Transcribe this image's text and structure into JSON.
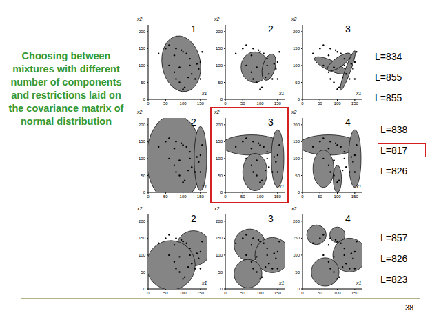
{
  "title": "Choosing between mixtures with different number of components and restrictions laid on the covariance matrix of normal distribution",
  "page": 38,
  "chart_data": [
    {
      "type": "scatter",
      "subtitle": "1",
      "x_label": "x1",
      "y_label": "x2",
      "x": [
        30,
        50,
        60,
        75,
        80,
        95,
        100,
        110,
        120,
        140,
        150,
        145,
        60,
        75,
        80,
        90,
        100,
        105,
        115,
        125,
        135,
        155,
        150,
        120,
        90
      ],
      "values": [
        135,
        150,
        160,
        130,
        150,
        145,
        140,
        135,
        120,
        105,
        110,
        90,
        100,
        80,
        60,
        50,
        30,
        35,
        65,
        75,
        60,
        140,
        60,
        100,
        95
      ],
      "xlim": [
        0,
        170
      ],
      "ylim": [
        0,
        220
      ],
      "xticks": [
        0,
        50,
        100,
        150
      ],
      "yticks": [
        0,
        50,
        100,
        150,
        200
      ],
      "components": [
        {
          "cx": 95,
          "cy": 105,
          "rx": 55,
          "ry": 83,
          "angle": 10
        }
      ],
      "annotation": {
        "value": 834,
        "label": "L=834"
      }
    },
    {
      "type": "scatter",
      "subtitle": "2",
      "x_label": "x1",
      "y_label": "x2",
      "x": [
        30,
        50,
        60,
        75,
        80,
        95,
        100,
        110,
        120,
        140,
        150,
        145,
        60,
        75,
        80,
        90,
        100,
        105,
        115,
        125,
        135,
        155,
        150,
        120,
        90
      ],
      "values": [
        135,
        150,
        160,
        130,
        150,
        145,
        140,
        135,
        120,
        105,
        110,
        90,
        100,
        80,
        60,
        50,
        30,
        35,
        65,
        75,
        60,
        140,
        60,
        100,
        95
      ],
      "xlim": [
        0,
        170
      ],
      "ylim": [
        0,
        220
      ],
      "xticks": [
        0,
        50,
        100,
        150
      ],
      "yticks": [
        0,
        50,
        100,
        150,
        200
      ],
      "components": [
        {
          "cx": 85,
          "cy": 95,
          "rx": 40,
          "ry": 45,
          "angle": 0
        },
        {
          "cx": 125,
          "cy": 95,
          "rx": 18,
          "ry": 40,
          "angle": -15
        }
      ],
      "annotation": {
        "value": 855,
        "label": "L=855"
      }
    },
    {
      "type": "scatter",
      "subtitle": "3",
      "x_label": "x1",
      "y_label": "x2",
      "x": [
        30,
        50,
        60,
        75,
        80,
        95,
        100,
        110,
        120,
        140,
        150,
        145,
        60,
        75,
        80,
        90,
        100,
        105,
        115,
        125,
        135,
        155,
        150,
        120,
        90
      ],
      "values": [
        135,
        150,
        160,
        130,
        150,
        145,
        140,
        135,
        120,
        105,
        110,
        90,
        100,
        80,
        60,
        50,
        30,
        35,
        65,
        75,
        60,
        140,
        60,
        100,
        95
      ],
      "xlim": [
        0,
        170
      ],
      "ylim": [
        0,
        220
      ],
      "xticks": [
        0,
        50,
        100,
        150
      ],
      "yticks": [
        0,
        50,
        100,
        150,
        200
      ],
      "components": [
        {
          "cx": 80,
          "cy": 100,
          "rx": 50,
          "ry": 15,
          "angle": -25
        },
        {
          "cx": 105,
          "cy": 110,
          "rx": 40,
          "ry": 14,
          "angle": 35
        },
        {
          "cx": 130,
          "cy": 85,
          "rx": 60,
          "ry": 8,
          "angle": 70
        }
      ],
      "annotation": {
        "value": 855,
        "label": "L=855"
      }
    },
    {
      "type": "scatter",
      "subtitle": "2",
      "x_label": "x1",
      "y_label": "x2",
      "x": [
        30,
        50,
        60,
        75,
        80,
        95,
        100,
        110,
        120,
        140,
        150,
        145,
        60,
        75,
        80,
        90,
        100,
        105,
        115,
        125,
        135,
        155,
        150,
        120,
        90
      ],
      "values": [
        135,
        150,
        160,
        130,
        150,
        145,
        140,
        135,
        120,
        105,
        110,
        90,
        100,
        80,
        60,
        50,
        30,
        35,
        65,
        75,
        60,
        140,
        60,
        100,
        95
      ],
      "xlim": [
        0,
        170
      ],
      "ylim": [
        0,
        220
      ],
      "xticks": [
        0,
        50,
        100,
        150
      ],
      "yticks": [
        0,
        50,
        100,
        150,
        200
      ],
      "components": [
        {
          "cx": 75,
          "cy": 100,
          "rx": 80,
          "ry": 130,
          "angle": 0
        },
        {
          "cx": 150,
          "cy": 100,
          "rx": 18,
          "ry": 95,
          "angle": 0
        }
      ],
      "annotation": {
        "value": 838,
        "label": "L=838"
      }
    },
    {
      "type": "scatter",
      "subtitle": "3",
      "x_label": "x1",
      "y_label": "x2",
      "x": [
        30,
        50,
        60,
        75,
        80,
        95,
        100,
        110,
        120,
        140,
        150,
        145,
        60,
        75,
        80,
        90,
        100,
        105,
        115,
        125,
        135,
        155,
        150,
        120,
        90
      ],
      "values": [
        135,
        150,
        160,
        130,
        150,
        145,
        140,
        135,
        120,
        105,
        110,
        90,
        100,
        80,
        60,
        50,
        30,
        35,
        65,
        75,
        60,
        140,
        60,
        100,
        95
      ],
      "xlim": [
        0,
        170
      ],
      "ylim": [
        0,
        220
      ],
      "xticks": [
        0,
        50,
        100,
        150
      ],
      "yticks": [
        0,
        50,
        100,
        150,
        200
      ],
      "components": [
        {
          "cx": 75,
          "cy": 140,
          "rx": 85,
          "ry": 30,
          "angle": 0
        },
        {
          "cx": 85,
          "cy": 60,
          "rx": 35,
          "ry": 55,
          "angle": 0
        },
        {
          "cx": 150,
          "cy": 100,
          "rx": 18,
          "ry": 85,
          "angle": 0
        }
      ],
      "annotation": {
        "value": 817,
        "label": "L=817"
      }
    },
    {
      "type": "scatter",
      "subtitle": "4",
      "x_label": "x1",
      "y_label": "x2",
      "x": [
        30,
        50,
        60,
        75,
        80,
        95,
        100,
        110,
        120,
        140,
        150,
        145,
        60,
        75,
        80,
        90,
        100,
        105,
        115,
        125,
        135,
        155,
        150,
        120,
        90
      ],
      "values": [
        135,
        150,
        160,
        130,
        150,
        145,
        140,
        135,
        120,
        105,
        110,
        90,
        100,
        80,
        60,
        50,
        30,
        35,
        65,
        75,
        60,
        140,
        60,
        100,
        95
      ],
      "xlim": [
        0,
        170
      ],
      "ylim": [
        0,
        220
      ],
      "xticks": [
        0,
        50,
        100,
        150
      ],
      "yticks": [
        0,
        50,
        100,
        150,
        200
      ],
      "components": [
        {
          "cx": 75,
          "cy": 140,
          "rx": 85,
          "ry": 30,
          "angle": 0
        },
        {
          "cx": 60,
          "cy": 70,
          "rx": 30,
          "ry": 55,
          "angle": 0
        },
        {
          "cx": 100,
          "cy": 40,
          "rx": 12,
          "ry": 40,
          "angle": 0
        },
        {
          "cx": 150,
          "cy": 100,
          "rx": 18,
          "ry": 85,
          "angle": 0
        }
      ],
      "annotation": {
        "value": 826,
        "label": "L=826"
      }
    },
    {
      "type": "scatter",
      "subtitle": "2",
      "x_label": "x1",
      "y_label": "x2",
      "x": [
        30,
        50,
        60,
        75,
        80,
        95,
        100,
        110,
        120,
        140,
        150,
        145,
        60,
        75,
        80,
        90,
        100,
        105,
        115,
        125,
        135,
        155,
        150,
        120,
        90
      ],
      "values": [
        135,
        150,
        160,
        130,
        150,
        145,
        140,
        135,
        120,
        105,
        110,
        90,
        100,
        80,
        60,
        50,
        30,
        35,
        65,
        75,
        60,
        140,
        60,
        100,
        95
      ],
      "xlim": [
        0,
        170
      ],
      "ylim": [
        0,
        220
      ],
      "xticks": [
        0,
        50,
        100,
        150
      ],
      "yticks": [
        0,
        50,
        100,
        150,
        200
      ],
      "components": [
        {
          "cx": 130,
          "cy": 120,
          "rx": 50,
          "ry": 52,
          "angle": 0
        },
        {
          "cx": 65,
          "cy": 70,
          "rx": 70,
          "ry": 73,
          "angle": 0
        }
      ],
      "annotation": {
        "value": 857,
        "label": "L=857"
      }
    },
    {
      "type": "scatter",
      "subtitle": "3",
      "x_label": "x1",
      "y_label": "x2",
      "x": [
        30,
        50,
        60,
        75,
        80,
        95,
        100,
        110,
        120,
        140,
        150,
        145,
        60,
        75,
        80,
        90,
        100,
        105,
        115,
        125,
        135,
        155,
        150,
        120,
        90
      ],
      "values": [
        135,
        150,
        160,
        130,
        150,
        145,
        140,
        135,
        120,
        105,
        110,
        90,
        100,
        80,
        60,
        50,
        30,
        35,
        65,
        75,
        60,
        140,
        60,
        100,
        95
      ],
      "xlim": [
        0,
        170
      ],
      "ylim": [
        0,
        220
      ],
      "xticks": [
        0,
        50,
        100,
        150
      ],
      "yticks": [
        0,
        50,
        100,
        150,
        200
      ],
      "components": [
        {
          "cx": 70,
          "cy": 130,
          "rx": 45,
          "ry": 47,
          "angle": 0
        },
        {
          "cx": 135,
          "cy": 100,
          "rx": 50,
          "ry": 52,
          "angle": 0
        },
        {
          "cx": 65,
          "cy": 45,
          "rx": 40,
          "ry": 42,
          "angle": 0
        }
      ],
      "annotation": {
        "value": 826,
        "label": "L=826"
      }
    },
    {
      "type": "scatter",
      "subtitle": "4",
      "x_label": "x1",
      "y_label": "x2",
      "x": [
        30,
        50,
        60,
        75,
        80,
        95,
        100,
        110,
        120,
        140,
        150,
        145,
        60,
        75,
        80,
        90,
        100,
        105,
        115,
        125,
        135,
        155,
        150,
        120,
        90
      ],
      "values": [
        135,
        150,
        160,
        130,
        150,
        145,
        140,
        135,
        120,
        105,
        110,
        90,
        100,
        80,
        60,
        50,
        30,
        35,
        65,
        75,
        60,
        140,
        60,
        100,
        95
      ],
      "xlim": [
        0,
        170
      ],
      "ylim": [
        0,
        220
      ],
      "xticks": [
        0,
        50,
        100,
        150
      ],
      "yticks": [
        0,
        50,
        100,
        150,
        200
      ],
      "components": [
        {
          "cx": 40,
          "cy": 160,
          "rx": 28,
          "ry": 29,
          "angle": 0
        },
        {
          "cx": 100,
          "cy": 160,
          "rx": 22,
          "ry": 23,
          "angle": 0
        },
        {
          "cx": 135,
          "cy": 100,
          "rx": 48,
          "ry": 50,
          "angle": 0
        },
        {
          "cx": 65,
          "cy": 50,
          "rx": 40,
          "ry": 42,
          "angle": 0
        }
      ],
      "annotation": {
        "value": 823,
        "label": "L=823"
      }
    }
  ]
}
